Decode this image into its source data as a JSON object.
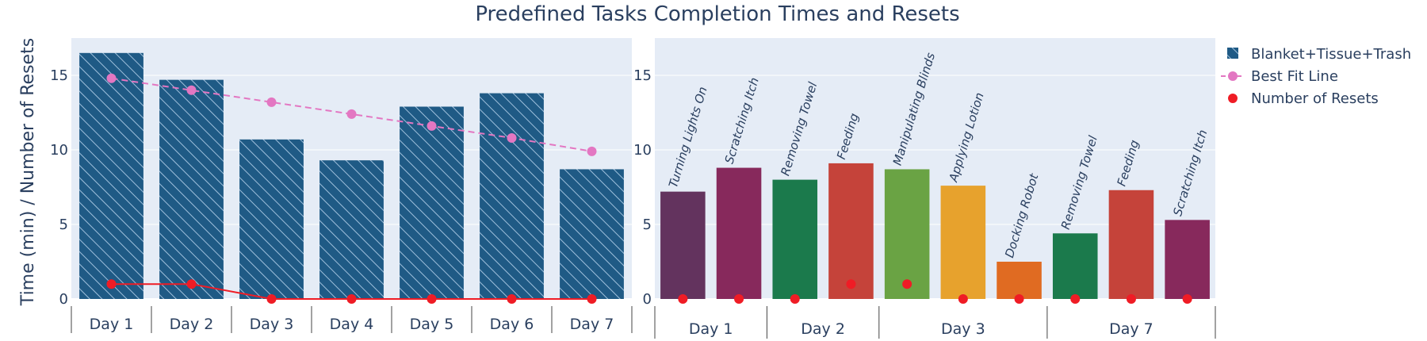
{
  "title": "Predefined Tasks Completion Times and Resets",
  "colors": {
    "plot_bg": "#e5ecf6",
    "grid": "#ffffff",
    "text": "#2a3f5f",
    "left_bar": "#1f5a85",
    "fit_line": "#e377c2",
    "resets": "#ef1c25"
  },
  "legend": {
    "placement": "top-right",
    "items": [
      "Blanket+Tissue+Trash",
      "Best Fit Line",
      "Number of Resets"
    ]
  },
  "chart_data": [
    {
      "type": "bar",
      "categories": [
        "Day 1",
        "Day 2",
        "Day 3",
        "Day 4",
        "Day 5",
        "Day 6",
        "Day 7"
      ],
      "ylabel": "Time (min) / Number of Resets",
      "ylim": [
        0,
        17.5
      ],
      "yticks": [
        0,
        5,
        10,
        15
      ],
      "grid": true,
      "series": [
        {
          "name": "Blanket+Tissue+Trash",
          "type": "bar",
          "pattern": "hatched",
          "values": [
            16.5,
            14.7,
            10.7,
            9.3,
            12.9,
            13.8,
            8.7
          ]
        },
        {
          "name": "Best Fit Line",
          "type": "line",
          "dash": "dashed",
          "values": [
            14.8,
            14.0,
            13.2,
            12.4,
            11.6,
            10.8,
            9.9
          ]
        },
        {
          "name": "Number of Resets",
          "type": "line",
          "values": [
            1,
            1,
            0,
            0,
            0,
            0,
            0
          ]
        }
      ]
    },
    {
      "type": "bar",
      "ylim": [
        0,
        17.5
      ],
      "yticks": [
        0,
        5,
        10,
        15
      ],
      "grid": true,
      "groups": [
        {
          "label": "Day 1",
          "tasks": [
            {
              "label": "Turning Lights On",
              "value": 7.2,
              "resets": 0,
              "color": "#63335e"
            },
            {
              "label": "Scratching Itch",
              "value": 8.8,
              "resets": 0,
              "color": "#87295c"
            }
          ]
        },
        {
          "label": "Day 2",
          "tasks": [
            {
              "label": "Removing Towel",
              "value": 8.0,
              "resets": 0,
              "color": "#1b7a4c"
            },
            {
              "label": "Feeding",
              "value": 9.1,
              "resets": 1,
              "color": "#c5433a"
            }
          ]
        },
        {
          "label": "Day 3",
          "tasks": [
            {
              "label": "Manipulating Blinds",
              "value": 8.7,
              "resets": 1,
              "color": "#6aa344"
            },
            {
              "label": "Applying Lotion",
              "value": 7.6,
              "resets": 0,
              "color": "#e7a22d"
            },
            {
              "label": "Docking Robot",
              "value": 2.5,
              "resets": 0,
              "color": "#e06b22"
            }
          ]
        },
        {
          "label": "Day 7",
          "tasks": [
            {
              "label": "Removing Towel",
              "value": 4.4,
              "resets": 0,
              "color": "#1b7a4c"
            },
            {
              "label": "Feeding",
              "value": 7.3,
              "resets": 0,
              "color": "#c5433a"
            },
            {
              "label": "Scratching Itch",
              "value": 5.3,
              "resets": 0,
              "color": "#87295c"
            }
          ]
        }
      ]
    }
  ]
}
